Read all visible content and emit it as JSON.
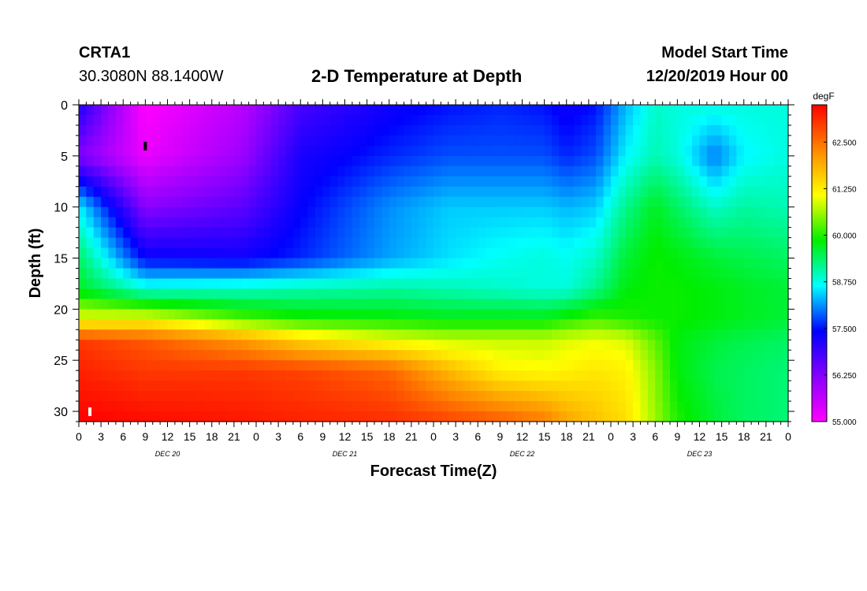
{
  "header": {
    "station_id": "CRTA1",
    "coordinates": "30.3080N 88.1400W",
    "title": "2-D Temperature at Depth",
    "model_start_label": "Model Start Time",
    "model_start_value": "12/20/2019 Hour 00"
  },
  "chart_data": {
    "type": "heatmap",
    "title": "2-D Temperature at Depth",
    "xlabel": "Forecast Time(Z)",
    "ylabel": "Depth (ft)",
    "x_range_hours": [
      0,
      96
    ],
    "x_tick_step_hours": 3,
    "x_tick_labels": [
      "0",
      "3",
      "6",
      "9",
      "12",
      "15",
      "18",
      "21",
      "0",
      "3",
      "6",
      "9",
      "12",
      "15",
      "18",
      "21",
      "0",
      "3",
      "6",
      "9",
      "12",
      "15",
      "18",
      "21",
      "0",
      "3",
      "6",
      "9",
      "12",
      "15",
      "18",
      "21",
      "0"
    ],
    "day_labels": [
      {
        "text": "DEC 20",
        "hour": 12
      },
      {
        "text": "DEC 21",
        "hour": 36
      },
      {
        "text": "DEC 22",
        "hour": 60
      },
      {
        "text": "DEC 23",
        "hour": 84
      }
    ],
    "y_range_ft": [
      0,
      31
    ],
    "y_ticks": [
      0,
      5,
      10,
      15,
      20,
      25,
      30
    ],
    "colorbar": {
      "unit": "degF",
      "min": 55.0,
      "max": 63.5,
      "tick_labels": [
        "55.000",
        "56.250",
        "57.500",
        "58.750",
        "60.000",
        "61.250",
        "62.500"
      ],
      "colors": [
        "#ff00ff",
        "#8800ff",
        "#0000ff",
        "#00ffff",
        "#00ee00",
        "#ffff00",
        "#ff8800",
        "#ff0000"
      ]
    },
    "field_keypoints_degF": {
      "depths_ft": [
        0,
        5,
        10,
        15,
        18,
        21,
        23,
        26,
        31
      ],
      "hours": [
        0,
        9,
        22,
        30,
        42,
        50,
        57,
        63,
        66,
        70,
        74,
        78,
        81,
        86,
        90,
        96
      ],
      "values": [
        [
          57.2,
          55.0,
          55.7,
          56.8,
          57.3,
          57.5,
          57.6,
          57.5,
          57.3,
          57.5,
          58.3,
          58.9,
          58.8,
          58.8,
          58.8,
          58.8
        ],
        [
          56.3,
          55.2,
          56.0,
          57.2,
          57.6,
          57.8,
          57.8,
          57.8,
          57.6,
          57.8,
          58.6,
          59.0,
          58.8,
          58.0,
          58.6,
          58.8
        ],
        [
          58.6,
          56.2,
          56.6,
          57.4,
          58.1,
          58.4,
          58.4,
          58.4,
          58.3,
          58.4,
          59.2,
          59.7,
          59.4,
          58.9,
          59.1,
          59.0
        ],
        [
          59.4,
          57.4,
          57.3,
          57.6,
          58.2,
          58.5,
          58.7,
          58.8,
          58.7,
          58.9,
          59.6,
          59.9,
          59.8,
          59.6,
          59.5,
          59.4
        ],
        [
          59.7,
          58.8,
          58.9,
          59.0,
          59.1,
          59.0,
          58.9,
          58.8,
          58.8,
          59.2,
          59.8,
          59.9,
          59.9,
          59.8,
          59.7,
          59.6
        ],
        [
          61.0,
          61.1,
          60.3,
          60.0,
          59.9,
          59.8,
          59.8,
          59.8,
          60.0,
          60.2,
          60.0,
          59.9,
          59.9,
          59.8,
          59.7,
          59.6
        ],
        [
          63.0,
          62.7,
          62.1,
          61.5,
          61.0,
          60.8,
          60.8,
          60.8,
          60.9,
          61.0,
          60.9,
          60.3,
          59.8,
          59.6,
          59.5,
          59.4
        ],
        [
          63.2,
          63.0,
          63.0,
          62.9,
          62.6,
          61.8,
          61.2,
          61.1,
          61.2,
          61.3,
          61.2,
          60.5,
          59.8,
          59.5,
          59.4,
          59.3
        ],
        [
          63.5,
          63.4,
          63.3,
          63.2,
          63.1,
          62.9,
          62.7,
          62.4,
          62.0,
          61.7,
          61.4,
          60.6,
          60.0,
          59.6,
          59.4,
          59.3
        ]
      ]
    },
    "markers": [
      {
        "hour": 9,
        "depth_ft": 4,
        "color": "#000000"
      },
      {
        "hour": 1.5,
        "depth_ft": 30,
        "color": "#ffffff"
      }
    ]
  }
}
